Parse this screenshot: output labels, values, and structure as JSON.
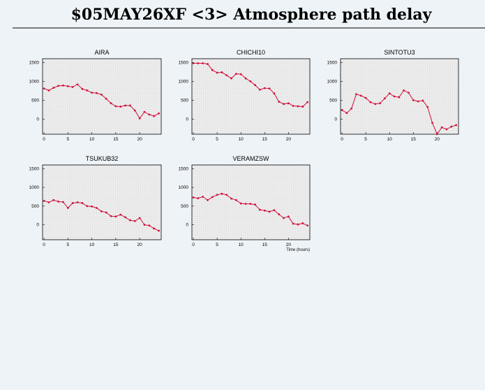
{
  "title": "$05MAY26XF <3>  Atmosphere path delay",
  "chart_data": [
    {
      "type": "line",
      "title": "AIRA",
      "x": [
        0,
        1,
        2,
        3,
        4,
        5,
        6,
        7,
        8,
        9,
        10,
        11,
        12,
        13,
        14,
        15,
        16,
        17,
        18,
        19,
        20,
        21,
        22,
        23,
        24
      ],
      "series": [
        {
          "name": "AIRA",
          "color": "#d0103a",
          "values": [
            810,
            760,
            830,
            880,
            890,
            870,
            850,
            920,
            800,
            760,
            700,
            690,
            650,
            540,
            420,
            340,
            330,
            360,
            360,
            230,
            20,
            190,
            120,
            80,
            150
          ]
        }
      ],
      "xlim": [
        -0.3,
        24.5
      ],
      "xticks": [
        0,
        5,
        10,
        15,
        20
      ],
      "ylim": [
        -400,
        1600
      ],
      "yticks": [
        0,
        500,
        1000,
        1500
      ]
    },
    {
      "type": "line",
      "title": "CHICHI10",
      "x": [
        0,
        1,
        2,
        3,
        4,
        5,
        6,
        7,
        8,
        9,
        10,
        11,
        12,
        13,
        14,
        15,
        16,
        17,
        18,
        19,
        20,
        21,
        22,
        23,
        24
      ],
      "series": [
        {
          "name": "CHICHI10",
          "color": "#d0103a",
          "values": [
            1480,
            1480,
            1480,
            1460,
            1300,
            1230,
            1240,
            1160,
            1080,
            1200,
            1190,
            1080,
            1000,
            900,
            780,
            820,
            810,
            680,
            460,
            400,
            420,
            350,
            340,
            330,
            450
          ]
        }
      ],
      "xlim": [
        -0.3,
        24.5
      ],
      "xticks": [
        0,
        5,
        10,
        15,
        20
      ],
      "ylim": [
        -400,
        1600
      ],
      "yticks": [
        0,
        500,
        1000,
        1500
      ]
    },
    {
      "type": "line",
      "title": "SINTOTU3",
      "x": [
        0,
        1,
        2,
        3,
        4,
        5,
        6,
        7,
        8,
        9,
        10,
        11,
        12,
        13,
        14,
        15,
        16,
        17,
        18,
        19,
        20,
        21,
        22,
        23,
        24
      ],
      "series": [
        {
          "name": "SINTOTU3",
          "color": "#d0103a",
          "values": [
            240,
            160,
            280,
            660,
            620,
            560,
            450,
            400,
            420,
            550,
            680,
            600,
            580,
            760,
            700,
            500,
            470,
            490,
            320,
            -100,
            -400,
            -220,
            -270,
            -200,
            -160
          ]
        }
      ],
      "xlim": [
        -0.3,
        24.5
      ],
      "xticks": [
        0,
        5,
        10,
        15,
        20
      ],
      "ylim": [
        -400,
        1600
      ],
      "yticks": [
        0,
        500,
        1000,
        1500
      ]
    },
    {
      "type": "line",
      "title": "TSUKUB32",
      "x": [
        0,
        1,
        2,
        3,
        4,
        5,
        6,
        7,
        8,
        9,
        10,
        11,
        12,
        13,
        14,
        15,
        16,
        17,
        18,
        19,
        20,
        21,
        22,
        23,
        24
      ],
      "series": [
        {
          "name": "TSUKUB32",
          "color": "#d0103a",
          "values": [
            640,
            600,
            660,
            620,
            610,
            450,
            580,
            600,
            580,
            500,
            490,
            450,
            360,
            330,
            230,
            220,
            270,
            200,
            120,
            100,
            180,
            0,
            -20,
            -100,
            -160
          ]
        }
      ],
      "xlim": [
        -0.3,
        24.5
      ],
      "xticks": [
        0,
        5,
        10,
        15,
        20
      ],
      "ylim": [
        -400,
        1600
      ],
      "yticks": [
        0,
        500,
        1000,
        1500
      ]
    },
    {
      "type": "line",
      "title": "VERAMZSW",
      "xlabel": "Time (hours)",
      "x": [
        0,
        1,
        2,
        3,
        4,
        5,
        6,
        7,
        8,
        9,
        10,
        11,
        12,
        13,
        14,
        15,
        16,
        17,
        18,
        19,
        20,
        21,
        22,
        23,
        24
      ],
      "series": [
        {
          "name": "VERAMZSW",
          "color": "#d0103a",
          "values": [
            730,
            710,
            750,
            660,
            740,
            800,
            830,
            800,
            700,
            660,
            570,
            560,
            560,
            540,
            400,
            380,
            350,
            390,
            280,
            180,
            220,
            30,
            10,
            40,
            -20
          ]
        }
      ],
      "xlim": [
        -0.3,
        24.5
      ],
      "xticks": [
        0,
        5,
        10,
        15,
        20
      ],
      "ylim": [
        -400,
        1600
      ],
      "yticks": [
        0,
        500,
        1000,
        1500
      ]
    }
  ]
}
